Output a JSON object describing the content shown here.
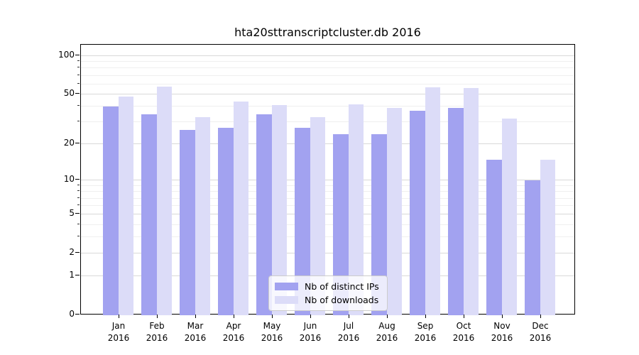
{
  "title": "hta20sttranscriptcluster.db 2016",
  "chart_data": {
    "type": "bar",
    "title": "hta20sttranscriptcluster.db 2016",
    "categories": [
      "Jan",
      "Feb",
      "Mar",
      "Apr",
      "May",
      "Jun",
      "Jul",
      "Aug",
      "Sep",
      "Oct",
      "Nov",
      "Dec"
    ],
    "category_year": "2016",
    "series": [
      {
        "name": "Nb of distinct IPs",
        "color": "#a2a2f0",
        "values": [
          40,
          35,
          26,
          27,
          35,
          27,
          24,
          24,
          37,
          39,
          15,
          10
        ]
      },
      {
        "name": "Nb of downloads",
        "color": "#dcdcf8",
        "values": [
          48,
          58,
          33,
          44,
          41,
          33,
          42,
          39,
          57,
          56,
          32,
          15
        ]
      }
    ],
    "y_axis": {
      "scale": "log10(value+1)",
      "major_ticks": [
        0,
        1,
        2,
        5,
        10,
        20,
        50,
        100
      ],
      "minor_ticks": [
        3,
        4,
        6,
        7,
        8,
        9,
        30,
        40,
        60,
        70,
        80,
        90
      ],
      "ylim": [
        0,
        123
      ]
    },
    "legend": {
      "position": "lower center"
    },
    "grid": true
  },
  "colors": {
    "bar_distinct_ips": "#a2a2f0",
    "bar_downloads": "#dcdcf8",
    "grid_major": "#d9d9d9",
    "grid_minor": "#efefef",
    "spine": "#000000",
    "background": "#ffffff",
    "legend_border": "#cccccc",
    "text": "#000000"
  }
}
